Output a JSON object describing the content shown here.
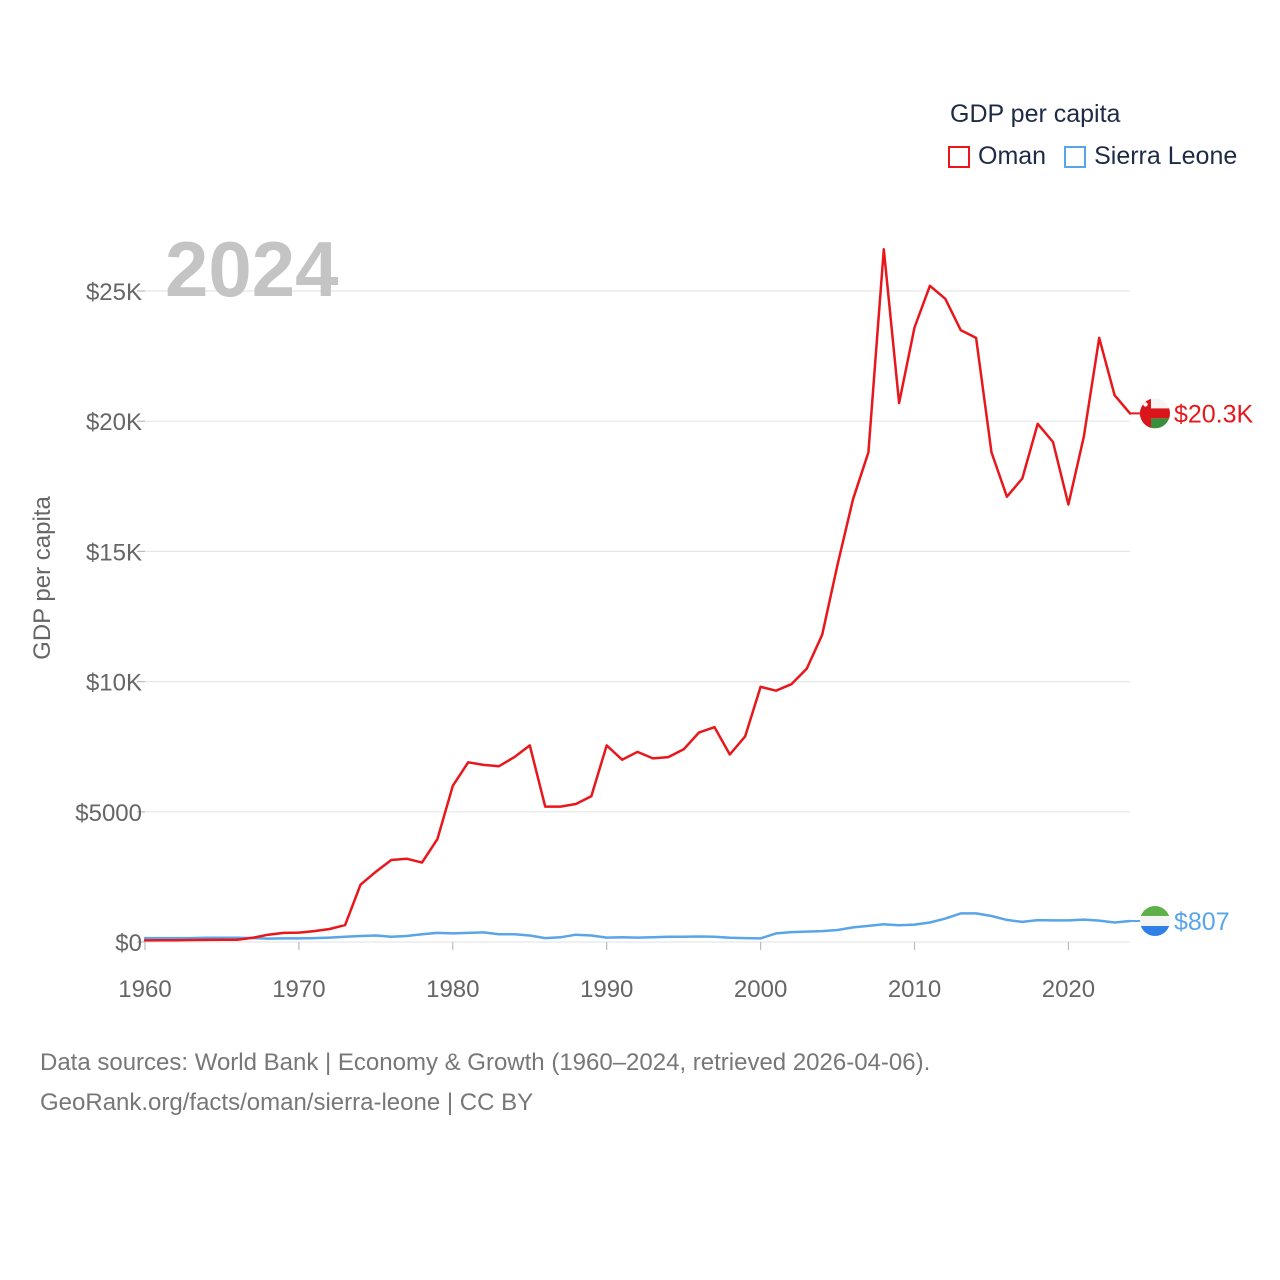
{
  "legend": {
    "title": "GDP per capita",
    "items": [
      {
        "name": "Oman",
        "color": "#e8171b"
      },
      {
        "name": "Sierra Leone",
        "color": "#5aa5e8"
      }
    ]
  },
  "year_label": "2024",
  "footer": {
    "line1": "Data sources: World Bank | Economy & Growth (1960–2024, retrieved 2026-04-06).",
    "line2": "GeoRank.org/facts/oman/sierra-leone | CC BY"
  },
  "chart_data": {
    "type": "line",
    "title": "",
    "xlabel": "",
    "ylabel": "GDP per capita",
    "xlim": [
      1960,
      2024
    ],
    "ylim": [
      0,
      27000
    ],
    "x_ticks": [
      1960,
      1970,
      1980,
      1990,
      2000,
      2010,
      2020
    ],
    "y_ticks": [
      {
        "value": 0,
        "label": "$0"
      },
      {
        "value": 5000,
        "label": "$5000"
      },
      {
        "value": 10000,
        "label": "$10K"
      },
      {
        "value": 15000,
        "label": "$15K"
      },
      {
        "value": 20000,
        "label": "$20K"
      },
      {
        "value": 25000,
        "label": "$25K"
      }
    ],
    "grid": true,
    "x": [
      1960,
      1961,
      1962,
      1963,
      1964,
      1965,
      1966,
      1967,
      1968,
      1969,
      1970,
      1971,
      1972,
      1973,
      1974,
      1975,
      1976,
      1977,
      1978,
      1979,
      1980,
      1981,
      1982,
      1983,
      1984,
      1985,
      1986,
      1987,
      1988,
      1989,
      1990,
      1991,
      1992,
      1993,
      1994,
      1995,
      1996,
      1997,
      1998,
      1999,
      2000,
      2001,
      2002,
      2003,
      2004,
      2005,
      2006,
      2007,
      2008,
      2009,
      2010,
      2011,
      2012,
      2013,
      2014,
      2015,
      2016,
      2017,
      2018,
      2019,
      2020,
      2021,
      2022,
      2023,
      2024
    ],
    "series": [
      {
        "name": "Oman",
        "color": "#e8171b",
        "end_label": "$20.3K",
        "values": [
          60,
          65,
          70,
          75,
          80,
          85,
          90,
          160,
          280,
          350,
          360,
          420,
          500,
          650,
          2200,
          2700,
          3150,
          3200,
          3050,
          3950,
          6000,
          6900,
          6800,
          6750,
          7100,
          7550,
          5200,
          5200,
          5300,
          5600,
          7550,
          7000,
          7300,
          7050,
          7100,
          7400,
          8050,
          8250,
          7200,
          7900,
          9800,
          9650,
          9900,
          10500,
          11800,
          14500,
          17000,
          18800,
          26600,
          20700,
          23600,
          25200,
          24700,
          23500,
          23200,
          18800,
          17100,
          17800,
          19900,
          19200,
          16800,
          19400,
          23200,
          21000,
          20300
        ]
      },
      {
        "name": "Sierra Leone",
        "color": "#5aa5e8",
        "end_label": "$807",
        "values": [
          150,
          150,
          150,
          150,
          160,
          160,
          160,
          150,
          130,
          140,
          140,
          150,
          170,
          200,
          230,
          250,
          200,
          230,
          300,
          350,
          330,
          350,
          370,
          300,
          300,
          250,
          150,
          180,
          280,
          250,
          170,
          180,
          170,
          180,
          200,
          200,
          210,
          200,
          160,
          150,
          140,
          330,
          380,
          400,
          420,
          460,
          560,
          620,
          680,
          640,
          670,
          750,
          900,
          1100,
          1100,
          1000,
          850,
          770,
          840,
          830,
          830,
          860,
          820,
          750,
          807
        ]
      }
    ]
  }
}
